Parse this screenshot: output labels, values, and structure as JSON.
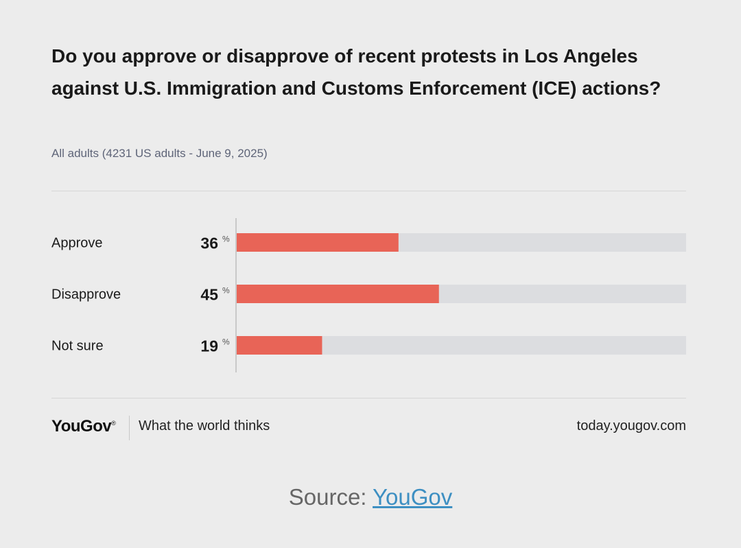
{
  "title": "Do you approve or disapprove of recent protests in Los Angeles against U.S. Immigration and Customs Enforcement (ICE) actions?",
  "subtitle": "All adults (4231 US adults - June 9, 2025)",
  "footer": {
    "brand": "YouGov",
    "tagline": "What the world thinks",
    "url": "today.yougov.com"
  },
  "source": {
    "prefix": "Source: ",
    "link": "YouGov"
  },
  "colors": {
    "bar": "#e86457",
    "track": "#dcdde0",
    "axis": "#c9c9c9",
    "background": "#ececec"
  },
  "chart_data": {
    "type": "bar",
    "orientation": "horizontal",
    "categories": [
      "Approve",
      "Disapprove",
      "Not sure"
    ],
    "values": [
      36,
      45,
      19
    ],
    "unit": "%",
    "xlim": [
      0,
      100
    ],
    "grid": false,
    "legend": "none"
  }
}
